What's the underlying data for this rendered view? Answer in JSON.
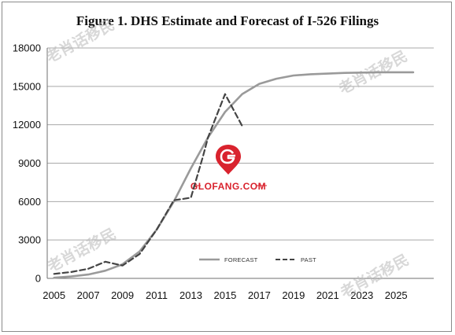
{
  "chart_data": {
    "type": "line",
    "title": "Figure 1.  DHS Estimate and Forecast of I-526 Filings",
    "xlabel": "",
    "ylabel": "",
    "xlim": [
      2004.6,
      2027.2
    ],
    "ylim": [
      0,
      18000
    ],
    "x_ticks": [
      "2005",
      "2007",
      "2009",
      "2011",
      "2013",
      "2015",
      "2017",
      "2019",
      "2021",
      "2023",
      "2025"
    ],
    "y_ticks": [
      "0",
      "3000",
      "6000",
      "9000",
      "12000",
      "15000",
      "18000"
    ],
    "grid": "horizontal",
    "legend_position": "bottom-center",
    "series": [
      {
        "name": "FORECAST",
        "style": "solid",
        "color": "#9a9a9a",
        "x": [
          2005,
          2006,
          2007,
          2008,
          2009,
          2010,
          2011,
          2012,
          2013,
          2014,
          2015,
          2016,
          2017,
          2018,
          2019,
          2020,
          2021,
          2022,
          2023,
          2024,
          2025,
          2026
        ],
        "y": [
          50,
          150,
          300,
          600,
          1100,
          2100,
          3800,
          6000,
          8600,
          11000,
          13000,
          14400,
          15200,
          15600,
          15850,
          15950,
          16000,
          16050,
          16080,
          16100,
          16100,
          16100
        ]
      },
      {
        "name": "PAST",
        "style": "dashed",
        "color": "#444444",
        "x": [
          2005,
          2006,
          2007,
          2008,
          2009,
          2010,
          2011,
          2012,
          2013,
          2013.7,
          2014,
          2015,
          2016
        ],
        "y": [
          350,
          500,
          750,
          1300,
          1000,
          1900,
          3800,
          6100,
          6300,
          9500,
          11000,
          14400,
          11900
        ]
      }
    ]
  },
  "watermarks": [
    "老肖话移民",
    "老肖话移民",
    "老肖话移民",
    "老肖话移民"
  ],
  "logo": {
    "text": "GLOFANG.COM",
    "icon": "g-pin-icon",
    "color": "#d9232e"
  }
}
